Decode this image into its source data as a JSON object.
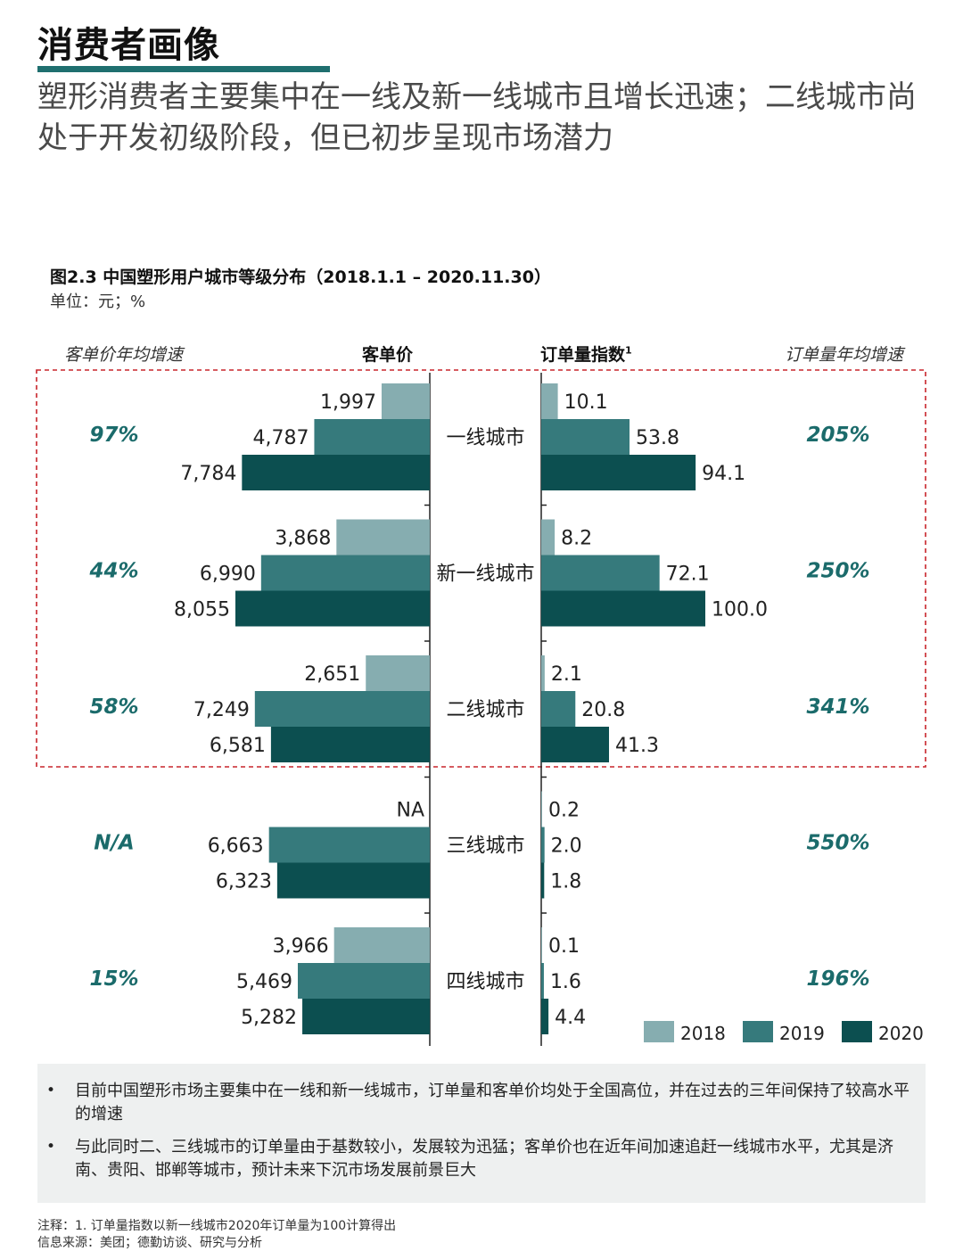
{
  "header": {
    "title": "消费者画像",
    "subtitle": "塑形消费者主要集中在一线及新一线城市且增长迅速；二线城市尚处于开发初级阶段，但已初步呈现市场潜力"
  },
  "figure": {
    "title": "图2.3 中国塑形用户城市等级分布（2018.1.1 – 2020.11.30）",
    "unit": "单位：元；%",
    "left_growth_header": "客单价年均增速",
    "left_value_header": "客单价",
    "right_value_header": "订单量指数",
    "right_value_header_sup": "1",
    "right_growth_header": "订单量年均增速"
  },
  "colors": {
    "accent": "#1f6f6f",
    "series_2018": "#86adb0",
    "series_2019": "#367a7c",
    "series_2020": "#0c4f50",
    "growth_text": "#1b6b6b",
    "highlight_border": "#c8252b",
    "note_bg": "#eef0f0"
  },
  "chart_data": {
    "type": "bar",
    "orientation": "horizontal-butterfly",
    "categories": [
      "一线城市",
      "新一线城市",
      "二线城市",
      "三线城市",
      "四线城市"
    ],
    "years": [
      "2018",
      "2019",
      "2020"
    ],
    "left": {
      "label": "客单价",
      "series": [
        {
          "name": "2018",
          "values": [
            1997,
            3868,
            2651,
            null,
            3966
          ],
          "labels": [
            "1,997",
            "3,868",
            "2,651",
            "NA",
            "3,966"
          ]
        },
        {
          "name": "2019",
          "values": [
            4787,
            6990,
            7249,
            6663,
            5469
          ],
          "labels": [
            "4,787",
            "6,990",
            "7,249",
            "6,663",
            "5,469"
          ]
        },
        {
          "name": "2020",
          "values": [
            7784,
            8055,
            6581,
            6323,
            5282
          ],
          "labels": [
            "7,784",
            "8,055",
            "6,581",
            "6,323",
            "5,282"
          ]
        }
      ]
    },
    "right": {
      "label": "订单量指数",
      "series": [
        {
          "name": "2018",
          "values": [
            10.1,
            8.2,
            2.1,
            0.2,
            0.1
          ],
          "labels": [
            "10.1",
            "8.2",
            "2.1",
            "0.2",
            "0.1"
          ]
        },
        {
          "name": "2019",
          "values": [
            53.8,
            72.1,
            20.8,
            2.0,
            1.6
          ],
          "labels": [
            "53.8",
            "72.1",
            "20.8",
            "2.0",
            "1.6"
          ]
        },
        {
          "name": "2020",
          "values": [
            94.1,
            100.0,
            41.3,
            1.8,
            4.4
          ],
          "labels": [
            "94.1",
            "100.0",
            "41.3",
            "1.8",
            "4.4"
          ]
        }
      ]
    },
    "left_growth": [
      "97%",
      "44%",
      "58%",
      "N/A",
      "15%"
    ],
    "right_growth": [
      "205%",
      "250%",
      "341%",
      "550%",
      "196%"
    ],
    "legend": [
      "2018",
      "2019",
      "2020"
    ],
    "legend_position": "bottom-right",
    "highlighted_categories": [
      "一线城市",
      "新一线城市",
      "二线城市"
    ]
  },
  "notes": [
    "目前中国塑形市场主要集中在一线和新一线城市，订单量和客单价均处于全国高位，并在过去的三年间保持了较高水平的增速",
    "与此同时二、三线城市的订单量由于基数较小，发展较为迅猛；客单价也在近年间加速追赶一线城市水平，尤其是济南、贵阳、邯郸等城市，预计未来下沉市场发展前景巨大"
  ],
  "bullet": "•",
  "footnotes": {
    "note": "注释：1. 订单量指数以新一线城市2020年订单量为100计算得出",
    "source": "信息来源：美团；德勤访谈、研究与分析"
  }
}
